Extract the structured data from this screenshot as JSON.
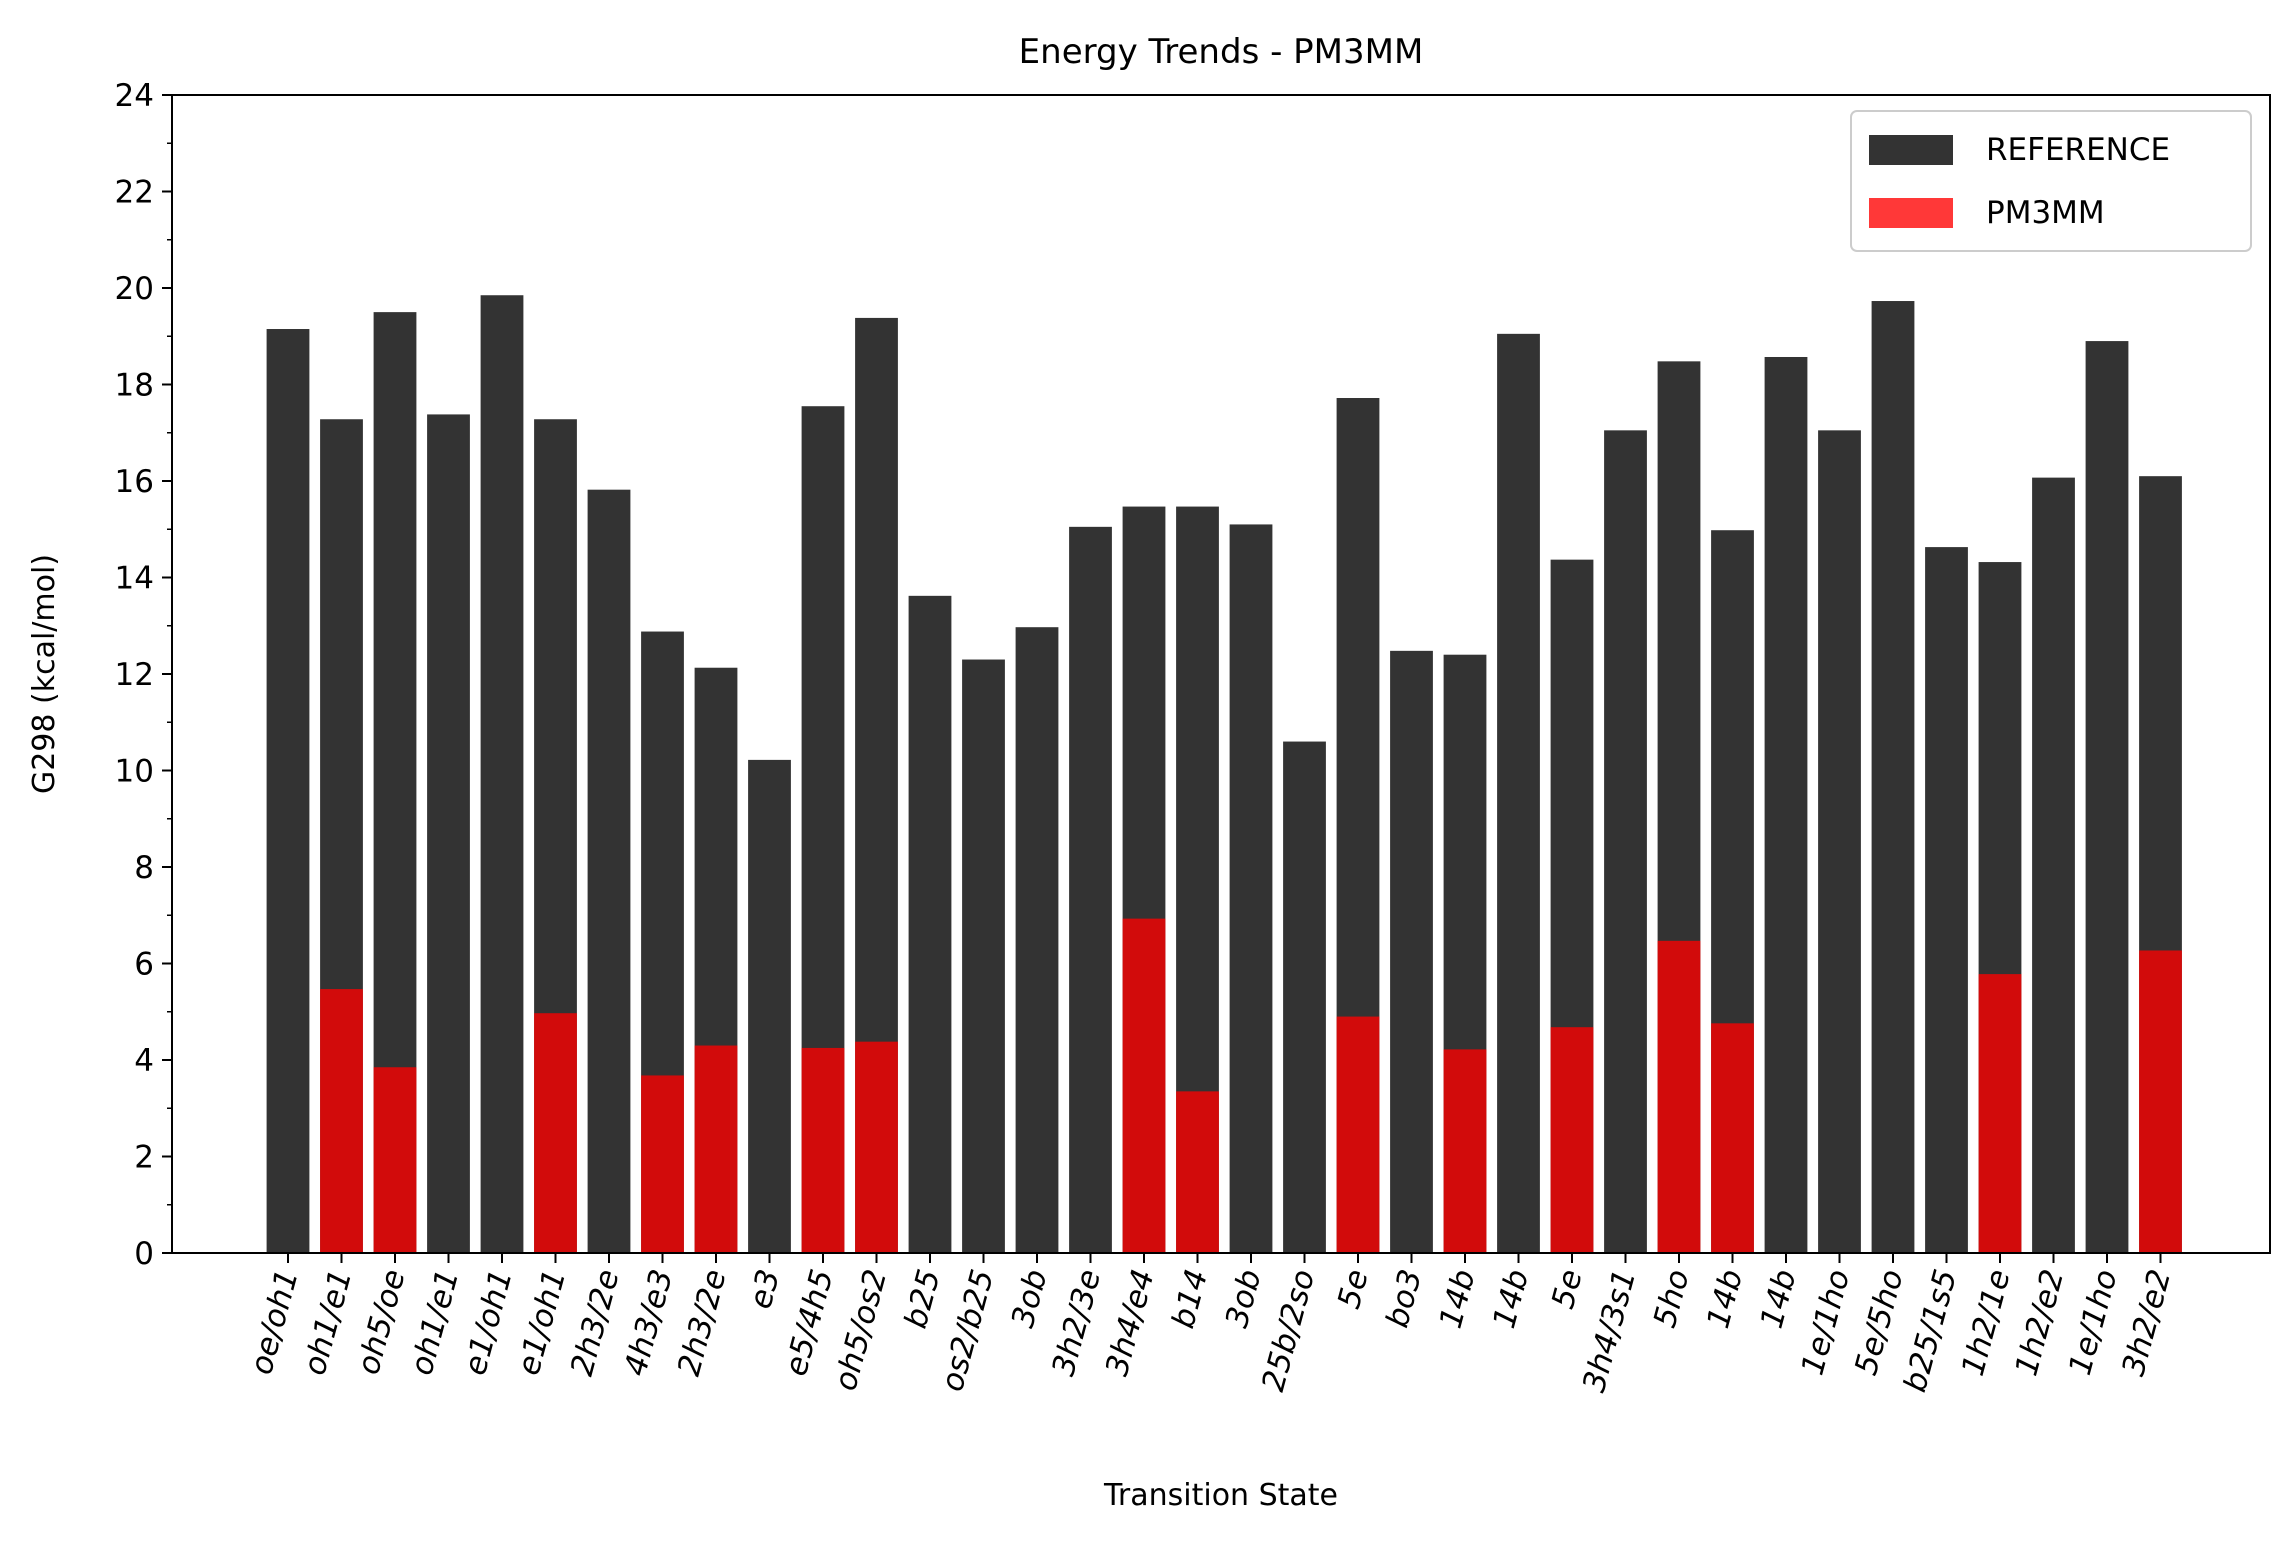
{
  "chart_data": {
    "type": "bar",
    "title": "Energy Trends - PM3MM",
    "xlabel": "Transition State",
    "ylabel": "G298 (kcal/mol)",
    "ylim": [
      0,
      24
    ],
    "yticks": [
      0,
      2,
      4,
      6,
      8,
      10,
      12,
      14,
      16,
      18,
      20,
      22,
      24
    ],
    "legend_position": "top-right",
    "grid": false,
    "categories": [
      "oe/oh1",
      "oh1/e1",
      "oh5/oe",
      "oh1/e1",
      "e1/oh1",
      "e1/oh1",
      "2h3/2e",
      "4h3/e3",
      "2h3/2e",
      "e3",
      "e5/4h5",
      "oh5/os2",
      "b25",
      "os2/b25",
      "3ob",
      "3h2/3e",
      "3h4/e4",
      "b14",
      "3ob",
      "25b/2so",
      "5e",
      "bo3",
      "14b",
      "14b",
      "5e",
      "3h4/3s1",
      "5ho",
      "14b",
      "14b",
      "1e/1ho",
      "5e/5ho",
      "b25/1s5",
      "1h2/1e",
      "1h2/e2",
      "1e/1ho",
      "3h2/e2"
    ],
    "series": [
      {
        "name": "REFERENCE",
        "color": "#333333",
        "values": [
          19.15,
          17.28,
          19.5,
          17.38,
          19.85,
          17.28,
          15.82,
          12.88,
          12.13,
          10.22,
          17.55,
          19.38,
          13.62,
          12.3,
          12.97,
          15.05,
          15.47,
          15.47,
          15.1,
          10.6,
          17.72,
          12.48,
          12.4,
          19.05,
          14.37,
          17.05,
          18.48,
          14.98,
          18.57,
          17.05,
          19.73,
          14.63,
          14.32,
          16.07,
          18.9,
          16.1
        ]
      },
      {
        "name": "PM3MM",
        "color": "#ff0000",
        "values": [
          null,
          5.47,
          3.85,
          null,
          null,
          4.97,
          null,
          3.68,
          4.3,
          null,
          4.25,
          4.38,
          null,
          null,
          null,
          null,
          6.93,
          3.35,
          null,
          null,
          4.9,
          null,
          4.22,
          null,
          4.68,
          null,
          6.47,
          4.76,
          null,
          null,
          null,
          null,
          5.78,
          null,
          null,
          6.27
        ]
      }
    ]
  }
}
